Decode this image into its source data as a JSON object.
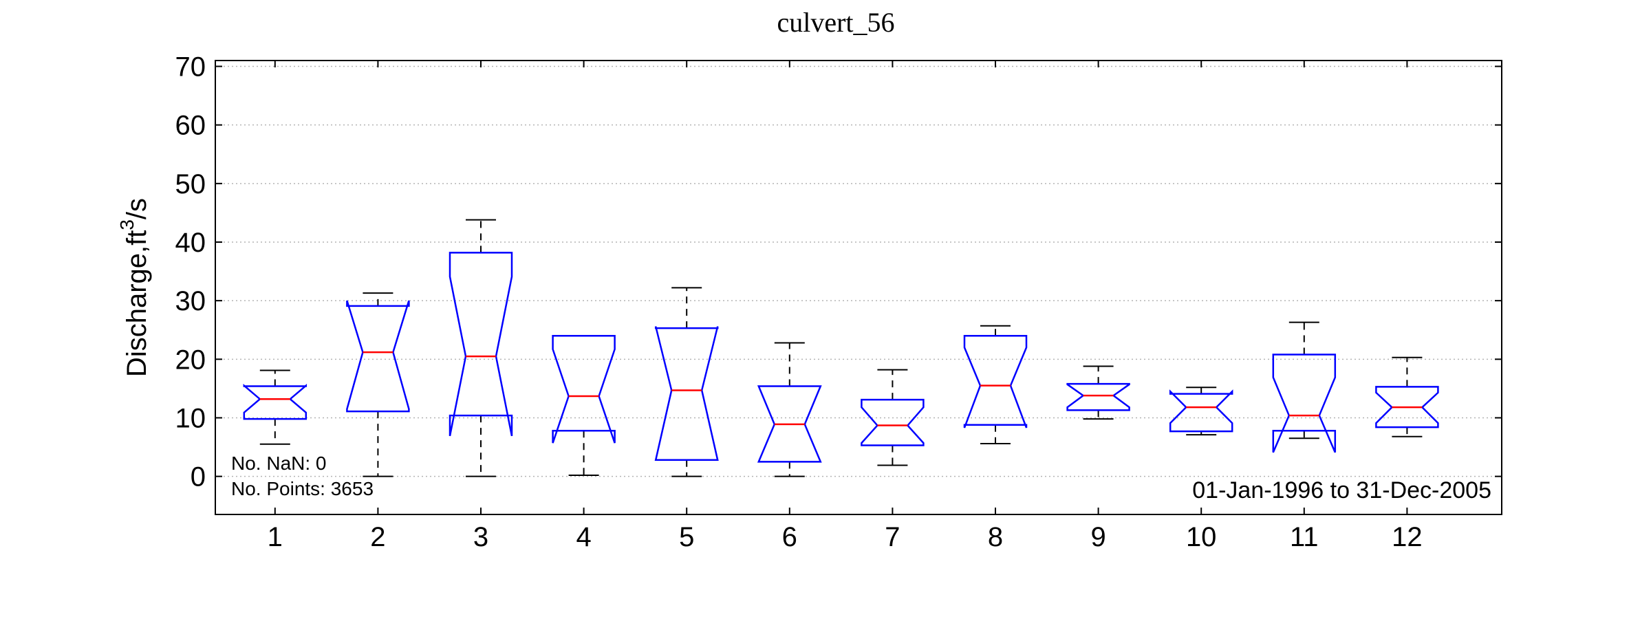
{
  "chart_data": {
    "type": "boxplot",
    "title": "culvert_56",
    "ylabel": "Discharge,ft",
    "ylabel_sup": "3",
    "ylabel_tail": "/s",
    "xlabel": "",
    "ylim": [
      -6.5,
      71
    ],
    "yticks": [
      0,
      10,
      20,
      30,
      40,
      50,
      60,
      70
    ],
    "grid": true,
    "notched": true,
    "categories": [
      "1",
      "2",
      "3",
      "4",
      "5",
      "6",
      "7",
      "8",
      "9",
      "10",
      "11",
      "12"
    ],
    "boxes": [
      {
        "label": "1",
        "whisker_low": 5.5,
        "q1": 9.8,
        "notch_low": 10.9,
        "median": 13.2,
        "notch_high": 15.5,
        "q3": 15.4,
        "whisker_high": 18.1
      },
      {
        "label": "2",
        "whisker_low": 0.0,
        "q1": 11.1,
        "notch_low": 11.5,
        "median": 21.2,
        "notch_high": 30.0,
        "q3": 29.1,
        "whisker_high": 31.3
      },
      {
        "label": "3",
        "whisker_low": 0.0,
        "q1": 10.4,
        "notch_low": 6.9,
        "median": 20.5,
        "notch_high": 34.1,
        "q3": 38.2,
        "whisker_high": 43.8
      },
      {
        "label": "4",
        "whisker_low": 0.2,
        "q1": 7.8,
        "notch_low": 5.7,
        "median": 13.7,
        "notch_high": 21.7,
        "q3": 24.0,
        "whisker_high": 24.0
      },
      {
        "label": "5",
        "whisker_low": 0.0,
        "q1": 2.8,
        "notch_low": 2.8,
        "median": 14.7,
        "notch_high": 25.6,
        "q3": 25.3,
        "whisker_high": 32.2
      },
      {
        "label": "6",
        "whisker_low": 0.0,
        "q1": 2.5,
        "notch_low": 2.5,
        "median": 8.9,
        "notch_high": 15.4,
        "q3": 15.4,
        "whisker_high": 22.8
      },
      {
        "label": "7",
        "whisker_low": 1.9,
        "q1": 5.3,
        "notch_low": 5.7,
        "median": 8.7,
        "notch_high": 11.8,
        "q3": 13.1,
        "whisker_high": 18.2
      },
      {
        "label": "8",
        "whisker_low": 5.6,
        "q1": 8.8,
        "notch_low": 8.3,
        "median": 15.5,
        "notch_high": 22.0,
        "q3": 24.0,
        "whisker_high": 25.7
      },
      {
        "label": "9",
        "whisker_low": 9.8,
        "q1": 11.3,
        "notch_low": 11.8,
        "median": 13.8,
        "notch_high": 15.7,
        "q3": 15.8,
        "whisker_high": 18.8
      },
      {
        "label": "10",
        "whisker_low": 7.1,
        "q1": 7.7,
        "notch_low": 9.1,
        "median": 11.8,
        "notch_high": 14.5,
        "q3": 14.1,
        "whisker_high": 15.2
      },
      {
        "label": "11",
        "whisker_low": 6.5,
        "q1": 7.8,
        "notch_low": 4.1,
        "median": 10.4,
        "notch_high": 16.9,
        "q3": 20.8,
        "whisker_high": 26.3
      },
      {
        "label": "12",
        "whisker_low": 6.8,
        "q1": 8.4,
        "notch_low": 9.1,
        "median": 11.8,
        "notch_high": 14.3,
        "q3": 15.3,
        "whisker_high": 20.3
      }
    ],
    "annotations": {
      "nan_count": "No. NaN: 0",
      "points_count": "No. Points: 3653",
      "date_range": "01-Jan-1996 to 31-Dec-2005"
    },
    "colors": {
      "box": "#0000ff",
      "median": "#ff0000",
      "whisker": "#000000",
      "grid": "#b4b4b4"
    }
  }
}
